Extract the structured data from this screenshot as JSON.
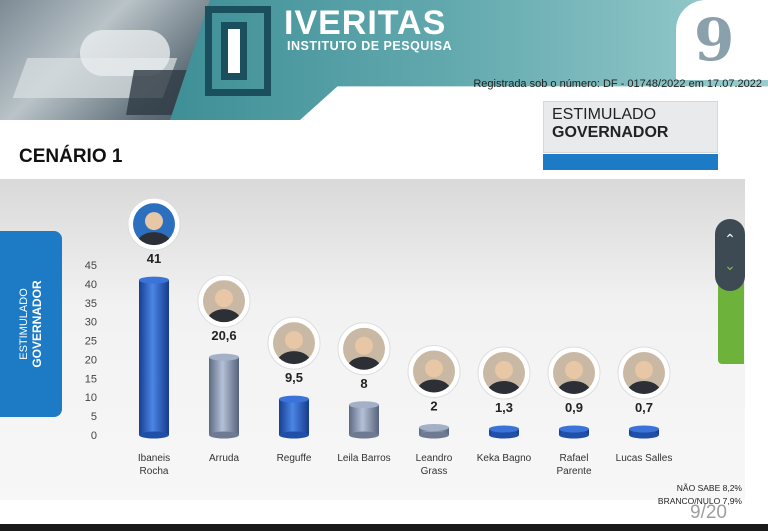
{
  "header": {
    "brand": "IVERITAS",
    "brand_sub": "INSTITUTO DE PESQUISA",
    "page_number": "9",
    "registration": "Registrada sob o número: DF - 01748/2022 em 17.07.2022"
  },
  "stim": {
    "line1": "ESTIMULADO",
    "line2": "GOVERNADOR"
  },
  "scenario": "CENÁRIO 1",
  "side_label": {
    "line1": "ESTIMULADO",
    "line2": "GOVERNADOR"
  },
  "footer": {
    "nao_sabe": "NÃO SABE 8,2%",
    "branco_nulo": "BRANCO/NULO 7,9%",
    "page_count": "9/20"
  },
  "colors": {
    "accent": "#1d7ac4",
    "teal": "#3f8f97",
    "green": "#6cb23b",
    "bar_blue": "#2a62c9",
    "bar_gray": "#8d9bb3"
  },
  "chart_data": {
    "type": "bar",
    "categories": [
      "Ibaneis Rocha",
      "Arruda",
      "Reguffe",
      "Leila Barros",
      "Leandro Grass",
      "Keka Bagno",
      "Rafael Parente",
      "Lucas Salles"
    ],
    "category_lines": [
      [
        "Ibaneis",
        "Rocha"
      ],
      [
        "Arruda"
      ],
      [
        "Reguffe"
      ],
      [
        "Leila Barros"
      ],
      [
        "Leandro",
        "Grass"
      ],
      [
        "Keka Bagno"
      ],
      [
        "Rafael",
        "Parente"
      ],
      [
        "Lucas Salles"
      ]
    ],
    "values": [
      41,
      20.6,
      9.5,
      8,
      2,
      1.3,
      0.9,
      0.7
    ],
    "value_labels": [
      "41",
      "20,6",
      "9,5",
      "8",
      "2",
      "1,3",
      "0,9",
      "0,7"
    ],
    "bar_colors": [
      "blue",
      "gray",
      "blue",
      "gray",
      "gray",
      "blue",
      "blue",
      "blue"
    ],
    "yticks": [
      0,
      5,
      10,
      15,
      20,
      25,
      30,
      35,
      40,
      45
    ],
    "ylim": [
      0,
      45
    ],
    "grid": false
  }
}
